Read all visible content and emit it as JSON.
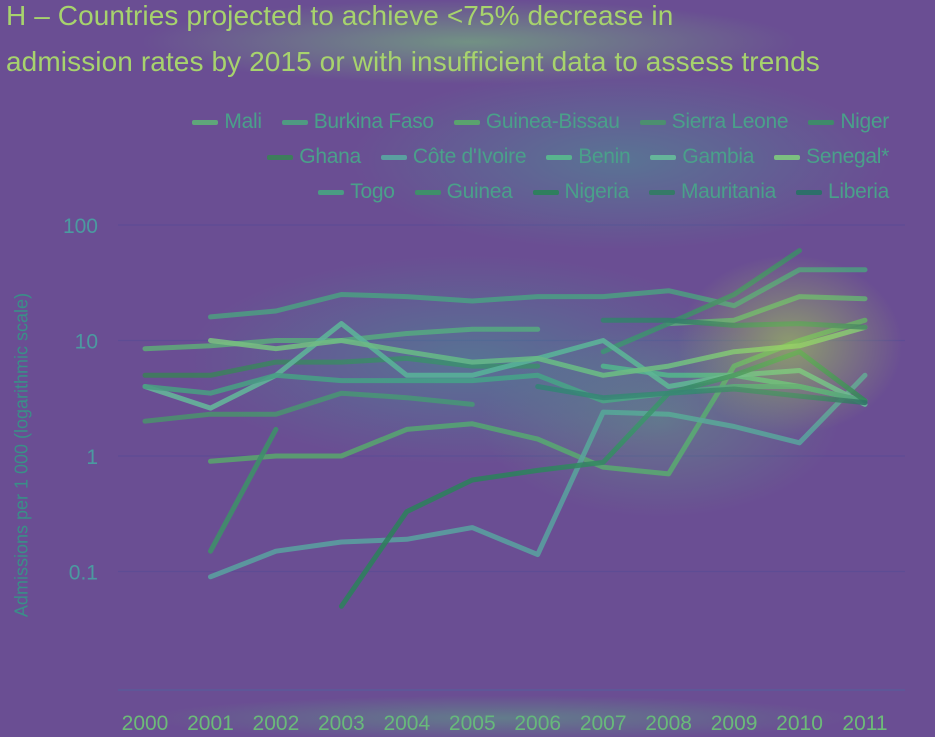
{
  "chart_data": {
    "type": "line",
    "title": "H – Countries projected to achieve <75% decrease in admission rates by 2015 or with insufficient data to assess trends",
    "title_lines": [
      "H – Countries projected to achieve <75% decrease in",
      "admission rates by 2015 or with insufficient data to assess trends"
    ],
    "ylabel": "Admissions per 1 000 (logarithmic scale)",
    "xlabel": "",
    "yscale": "log",
    "ylim": [
      0.03,
      100
    ],
    "yticks": [
      100,
      10,
      1,
      0.1
    ],
    "ytick_labels": [
      "100",
      "10",
      "1",
      "0.1"
    ],
    "x": [
      2000,
      2001,
      2002,
      2003,
      2004,
      2005,
      2006,
      2007,
      2008,
      2009,
      2010,
      2011
    ],
    "xtick_labels": [
      "2000",
      "2001",
      "2002",
      "2003",
      "2004",
      "2005",
      "2006",
      "2007",
      "2008",
      "2009",
      "2010",
      "2011"
    ],
    "grid": true,
    "legend_position": "top-right",
    "legend_rows": [
      [
        "Mali",
        "Burkina Faso",
        "Guinea-Bissau",
        "Sierra Leone",
        "Niger"
      ],
      [
        "Ghana",
        "Côte d'Ivoire",
        "Benin",
        "Gambia",
        "Senegal*"
      ],
      [
        "Togo",
        "Guinea",
        "Nigeria",
        "Mauritania",
        "Liberia"
      ]
    ],
    "series": [
      {
        "name": "Mali",
        "color": "#5fa67a",
        "values": [
          8.5,
          9,
          10,
          10,
          11.5,
          12.5,
          12.5,
          null,
          14,
          15,
          24,
          23
        ]
      },
      {
        "name": "Burkina Faso",
        "color": "#4f9a82",
        "values": [
          null,
          16,
          18,
          25,
          24,
          22,
          24,
          24,
          27,
          20,
          41,
          41
        ]
      },
      {
        "name": "Guinea-Bissau",
        "color": "#5aa36e",
        "values": [
          null,
          0.9,
          1,
          1,
          1.7,
          1.9,
          1.4,
          0.8,
          0.7,
          6,
          10,
          15
        ]
      },
      {
        "name": "Sierra Leone",
        "color": "#4c8f6f",
        "values": [
          2,
          2.3,
          2.3,
          3.5,
          3.2,
          2.8,
          null,
          null,
          null,
          null,
          null,
          null
        ]
      },
      {
        "name": "Niger",
        "color": "#3f8a6a",
        "values": [
          null,
          null,
          null,
          null,
          null,
          null,
          null,
          8,
          14,
          25,
          60,
          null
        ]
      },
      {
        "name": "Ghana",
        "color": "#3e7d5c",
        "values": [
          5,
          5,
          6.5,
          6.5,
          7,
          6,
          6,
          null,
          null,
          null,
          null,
          null
        ]
      },
      {
        "name": "Côte d'Ivoire",
        "color": "#5a9fa0",
        "values": [
          null,
          0.09,
          0.15,
          0.18,
          0.19,
          0.24,
          0.14,
          2.4,
          2.3,
          1.8,
          1.3,
          5
        ]
      },
      {
        "name": "Benin",
        "color": "#58b48e",
        "values": [
          null,
          null,
          null,
          null,
          null,
          null,
          null,
          6,
          5,
          5,
          4,
          3
        ]
      },
      {
        "name": "Gambia",
        "color": "#65b59a",
        "values": [
          4,
          2.6,
          5,
          14,
          5,
          5,
          7,
          10,
          4,
          5,
          5.5,
          2.8
        ]
      },
      {
        "name": "Senegal*",
        "color": "#7cbf80",
        "values": [
          null,
          10,
          8.5,
          10,
          8,
          6.5,
          7,
          5,
          6,
          8,
          9,
          13
        ]
      },
      {
        "name": "Togo",
        "color": "#4a9c83",
        "values": [
          4,
          3.5,
          5,
          4.5,
          4.5,
          4.5,
          5,
          3,
          3.5,
          4,
          4,
          3
        ]
      },
      {
        "name": "Guinea",
        "color": "#3f8f6a",
        "values": [
          null,
          0.15,
          1.7,
          null,
          null,
          null,
          null,
          null,
          null,
          null,
          null,
          null
        ]
      },
      {
        "name": "Nigeria",
        "color": "#2f7f5e",
        "values": [
          null,
          null,
          null,
          0.05,
          0.33,
          0.62,
          0.75,
          0.88,
          3.5,
          5,
          8,
          3
        ]
      },
      {
        "name": "Mauritania",
        "color": "#357a67",
        "values": [
          null,
          null,
          null,
          null,
          null,
          null,
          null,
          15,
          15,
          13.5,
          14,
          13
        ]
      },
      {
        "name": "Liberia",
        "color": "#2d6f6a",
        "values": [
          null,
          null,
          null,
          null,
          null,
          null,
          4,
          3.2,
          3.5,
          3.8,
          3.3,
          2.9
        ]
      }
    ]
  }
}
